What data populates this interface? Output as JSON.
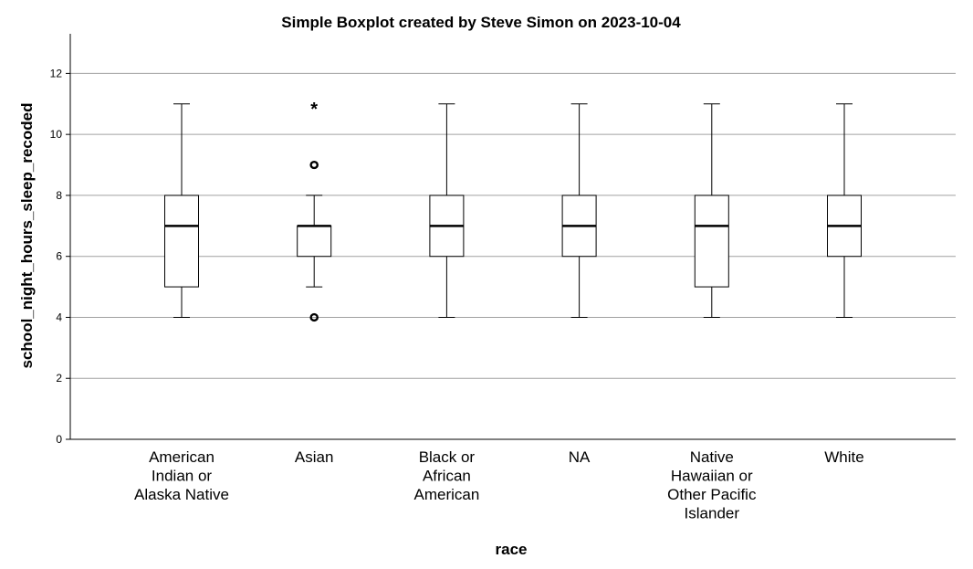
{
  "chart_data": {
    "type": "boxplot",
    "title": "Simple Boxplot created by Steve Simon on 2023-10-04",
    "xlabel": "race",
    "ylabel": "school_night_hours_sleep_recoded",
    "ylim": [
      0,
      13.3
    ],
    "yticks": [
      0,
      2,
      4,
      6,
      8,
      10,
      12
    ],
    "grid": true,
    "categories": [
      [
        "American",
        "Indian or",
        "Alaska Native"
      ],
      [
        "Asian"
      ],
      [
        "Black or",
        "African",
        "American"
      ],
      [
        "NA"
      ],
      [
        "Native",
        "Hawaiian or",
        "Other Pacific",
        "Islander"
      ],
      [
        "White"
      ]
    ],
    "boxes": [
      {
        "whisker_low": 4,
        "q1": 5,
        "median": 7,
        "q3": 8,
        "whisker_high": 11,
        "outliers": [],
        "extremes": []
      },
      {
        "whisker_low": 5,
        "q1": 6,
        "median": 7,
        "q3": 7,
        "whisker_high": 8,
        "outliers": [
          4,
          9
        ],
        "extremes": [
          11
        ]
      },
      {
        "whisker_low": 4,
        "q1": 6,
        "median": 7,
        "q3": 8,
        "whisker_high": 11,
        "outliers": [],
        "extremes": []
      },
      {
        "whisker_low": 4,
        "q1": 6,
        "median": 7,
        "q3": 8,
        "whisker_high": 11,
        "outliers": [],
        "extremes": []
      },
      {
        "whisker_low": 4,
        "q1": 5,
        "median": 7,
        "q3": 8,
        "whisker_high": 11,
        "outliers": [],
        "extremes": []
      },
      {
        "whisker_low": 4,
        "q1": 6,
        "median": 7,
        "q3": 8,
        "whisker_high": 11,
        "outliers": [],
        "extremes": []
      }
    ],
    "extreme_marker": "*"
  }
}
